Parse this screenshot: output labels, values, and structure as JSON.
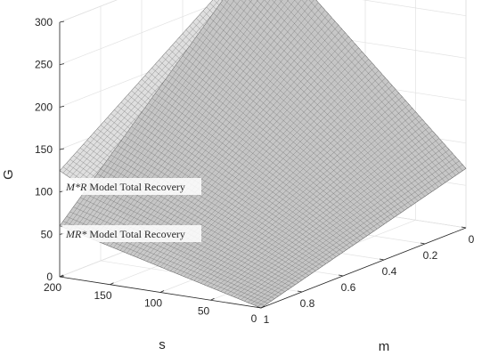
{
  "chart_data": {
    "type": "surface",
    "xlabel": "m",
    "ylabel": "s",
    "zlabel": "G",
    "xlim": [
      0,
      1
    ],
    "ylim": [
      0,
      200
    ],
    "zlim": [
      0,
      300
    ],
    "xticks": [
      "0",
      "0.2",
      "0.4",
      "0.6",
      "0.8",
      "1"
    ],
    "yticks": [
      "0",
      "50",
      "100",
      "150",
      "200"
    ],
    "zticks": [
      "0",
      "50",
      "100",
      "150",
      "200",
      "250",
      "300"
    ],
    "grid": true,
    "surfaces": [
      {
        "name": "M*R Model Total Recovery",
        "label_italic": "M*R",
        "label_rest": " Model Total Recovery",
        "corners": {
          "m0_s0": 70,
          "m0_s200": 300,
          "m1_s200": 125,
          "m1_s0": 0
        }
      },
      {
        "name": "MR* Model Total Recovery",
        "label_italic": "MR*",
        "label_rest": " Model Total Recovery",
        "corners": {
          "m0_s0": 70,
          "m0_s200": 300,
          "m1_s200": 60,
          "m1_s0": 0
        }
      }
    ]
  }
}
